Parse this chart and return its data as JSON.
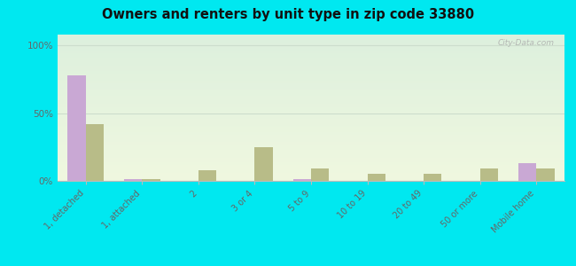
{
  "title": "Owners and renters by unit type in zip code 33880",
  "categories": [
    "1, detached",
    "1, attached",
    "2",
    "3 or 4",
    "5 to 9",
    "10 to 19",
    "20 to 49",
    "50 or more",
    "Mobile home"
  ],
  "owner_values": [
    78,
    1,
    0,
    0,
    1,
    0,
    0,
    0,
    13
  ],
  "renter_values": [
    42,
    1,
    8,
    25,
    9,
    5,
    5,
    9,
    9
  ],
  "owner_color": "#c9a8d4",
  "renter_color": "#b8bc88",
  "outer_bg": "#00e8f0",
  "plot_bg_top": "#ddf0dd",
  "plot_bg_bottom": "#f0f8e0",
  "yticks": [
    0,
    50,
    100
  ],
  "ylabels": [
    "0%",
    "50%",
    "100%"
  ],
  "ylim": [
    0,
    108
  ],
  "watermark": "City-Data.com",
  "grid_color": "#ccddcc",
  "spine_color": "#bbbbbb",
  "tick_label_color": "#666666",
  "title_color": "#111111"
}
